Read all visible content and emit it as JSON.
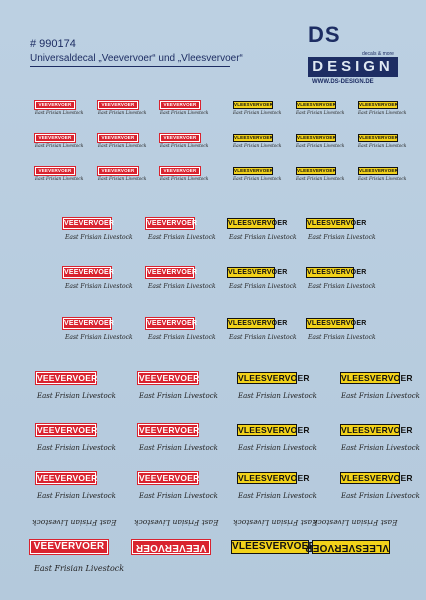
{
  "header": {
    "code": "# 990174",
    "title": "Universaldecal „Veevervoer“ und „Vleesvervoer“"
  },
  "logo": {
    "brand": "DS",
    "tagline": "decals & more",
    "design": "DESIGN",
    "url": "WWW.DS-DESIGN.DE"
  },
  "labels": {
    "red": "VEEVERVOER",
    "yellow": "VLEESVERVOER",
    "script_small": "East Frisian Livestock",
    "script_large": "East Frisian Livestock"
  },
  "colors": {
    "background": "#b8cde0",
    "red_plate": "#d9232f",
    "yellow_plate": "#f2d21a",
    "navy": "#1d2d63"
  }
}
